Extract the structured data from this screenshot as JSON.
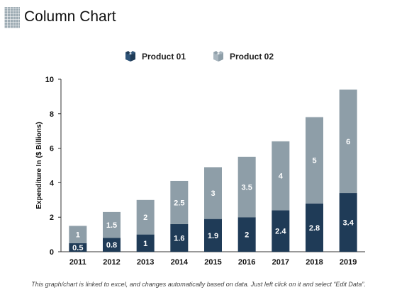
{
  "page": {
    "title": "Column Chart"
  },
  "legend": {
    "product1": "Product 01",
    "product2": "Product 02"
  },
  "colors": {
    "product1": "#1f3b57",
    "product2": "#8e9ea8",
    "axis": "#333333",
    "label_light": "#ffffff"
  },
  "icons": {
    "legend": "box-icon",
    "title": "grid-square-icon"
  },
  "footnote": "This graph/chart is linked to excel, and changes automatically based on data.  Just left click on it and select “Edit Data”.",
  "chart_data": {
    "type": "bar",
    "stacked": true,
    "categories": [
      "2011",
      "2012",
      "2013",
      "2014",
      "2015",
      "2016",
      "2017",
      "2018",
      "2019"
    ],
    "series": [
      {
        "name": "Product 01",
        "values": [
          0.5,
          0.8,
          1,
          1.6,
          1.9,
          2,
          2.4,
          2.8,
          3.4
        ]
      },
      {
        "name": "Product 02",
        "values": [
          1,
          1.5,
          2,
          2.5,
          3,
          3.5,
          4,
          5,
          6
        ]
      }
    ],
    "ylabel": "Expenditure  In ($ Billions)",
    "ylim": [
      0,
      10
    ],
    "yticks": [
      0,
      2,
      4,
      6,
      8,
      10
    ],
    "grid": false,
    "legend_position": "top"
  }
}
